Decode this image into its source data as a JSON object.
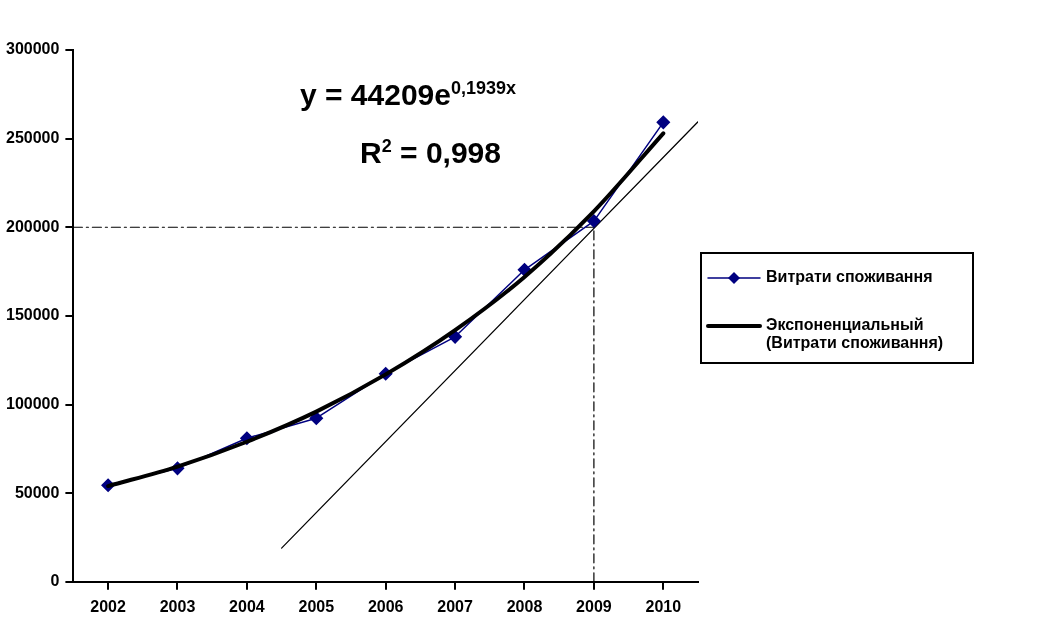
{
  "chart_data": {
    "type": "line",
    "x": [
      2002,
      2003,
      2004,
      2005,
      2006,
      2007,
      2008,
      2009,
      2010
    ],
    "xlim": [
      2001.5,
      2010.5
    ],
    "xticks": [
      2002,
      2003,
      2004,
      2005,
      2006,
      2007,
      2008,
      2009,
      2010
    ],
    "ylim": [
      0,
      300000
    ],
    "yticks": [
      0,
      50000,
      100000,
      150000,
      200000,
      250000,
      300000
    ],
    "grid": false,
    "legend": "right",
    "marker": "diamond",
    "annotations": [
      "y = 44209e$^{0,1939x}$",
      "R$^{2}$ = 0,998"
    ],
    "series": [
      {
        "name": "Витрати споживання",
        "color": "#000080",
        "values": [
          54500,
          64000,
          81000,
          92300,
          117400,
          138200,
          176000,
          203500,
          259200
        ]
      },
      {
        "name": "Экспоненциальный (Витрати споживання)",
        "color": "#000000",
        "marker": "none",
        "values": [
          54000,
          65000,
          79000,
          96000,
          117000,
          142000,
          172000,
          209000,
          253000
        ]
      },
      {
        "color": "#000000",
        "marker": "none",
        "x": [
          2004.5,
          2010.5
        ],
        "values": [
          19000,
          259500
        ]
      },
      {
        "color": "#000000",
        "marker": "none",
        "line_style": "dashed",
        "x": [
          2001.5,
          2009
        ],
        "values": [
          200000,
          200000
        ]
      },
      {
        "color": "#000000",
        "marker": "none",
        "line_style": "dashed",
        "x": [
          2009,
          2009
        ],
        "values": [
          0,
          200000
        ]
      }
    ]
  }
}
